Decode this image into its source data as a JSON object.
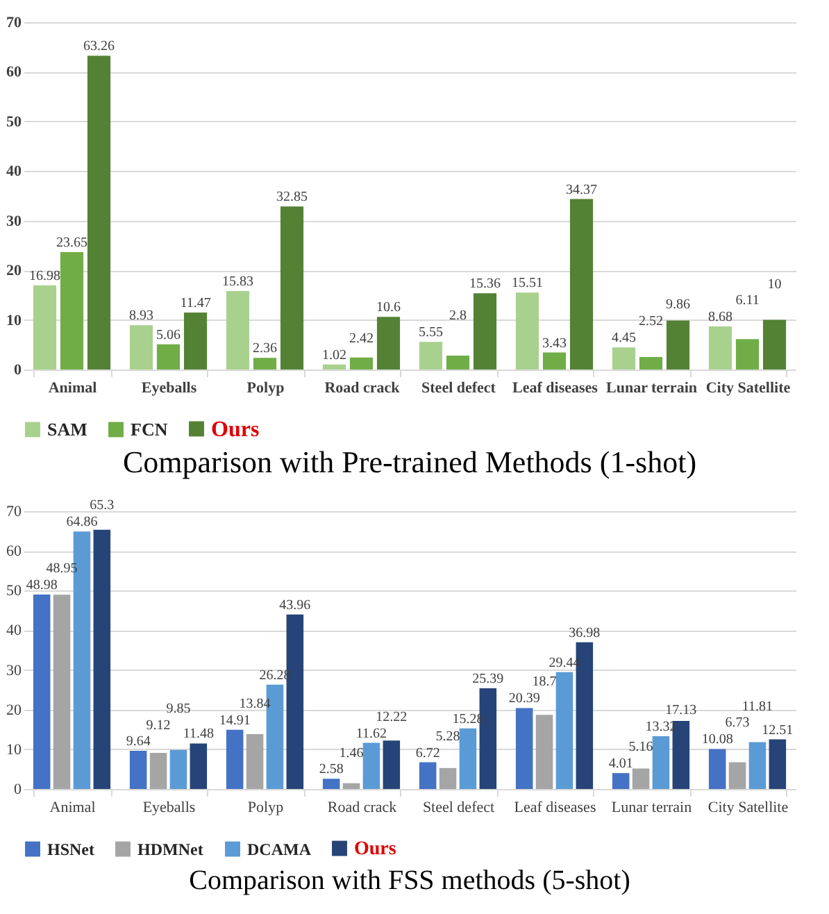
{
  "chart_data": [
    {
      "type": "bar",
      "title": "Comparison with Pre-trained Methods (1-shot)",
      "categories": [
        "Animal",
        "Eyeballs",
        "Polyp",
        "Road crack",
        "Steel defect",
        "Leaf diseases",
        "Lunar terrain",
        "City Satellite"
      ],
      "series": [
        {
          "name": "SAM",
          "color": "#a9d18e",
          "values": [
            16.98,
            8.93,
            15.83,
            1.02,
            5.55,
            15.51,
            4.45,
            8.68
          ]
        },
        {
          "name": "FCN",
          "color": "#70ad47",
          "values": [
            23.65,
            5.06,
            2.36,
            2.42,
            2.8,
            3.43,
            2.52,
            6.11
          ]
        },
        {
          "name": "Ours",
          "color": "#548235",
          "values": [
            63.26,
            11.47,
            32.85,
            10.6,
            15.36,
            34.37,
            9.86,
            10
          ]
        }
      ],
      "ylim": [
        0,
        70
      ],
      "yticks": [
        0,
        10,
        20,
        30,
        40,
        50,
        60,
        70
      ],
      "grid": "y",
      "legend": "bottom",
      "data_labels": true
    },
    {
      "type": "bar",
      "title": "Comparison with FSS methods (5-shot)",
      "categories": [
        "Animal",
        "Eyeballs",
        "Polyp",
        "Road crack",
        "Steel defect",
        "Leaf diseases",
        "Lunar terrain",
        "City Satellite"
      ],
      "series": [
        {
          "name": "HSNet",
          "color": "#4472c4",
          "values": [
            48.98,
            9.64,
            14.91,
            2.58,
            6.72,
            20.39,
            4.01,
            10.08
          ]
        },
        {
          "name": "HDMNet",
          "color": "#a5a5a5",
          "values": [
            48.95,
            9.12,
            13.84,
            1.46,
            5.28,
            18.7,
            5.16,
            6.73
          ]
        },
        {
          "name": "DCAMA",
          "color": "#5b9bd5",
          "values": [
            64.86,
            9.85,
            26.28,
            11.62,
            15.28,
            29.44,
            13.32,
            11.81
          ]
        },
        {
          "name": "Ours",
          "color": "#264478",
          "values": [
            65.3,
            11.48,
            43.96,
            12.22,
            25.39,
            36.98,
            17.13,
            12.51
          ]
        }
      ],
      "ylim": [
        0,
        70
      ],
      "yticks": [
        0,
        10,
        20,
        30,
        40,
        50,
        60,
        70
      ],
      "grid": "y",
      "legend": "bottom",
      "data_labels": true
    }
  ]
}
